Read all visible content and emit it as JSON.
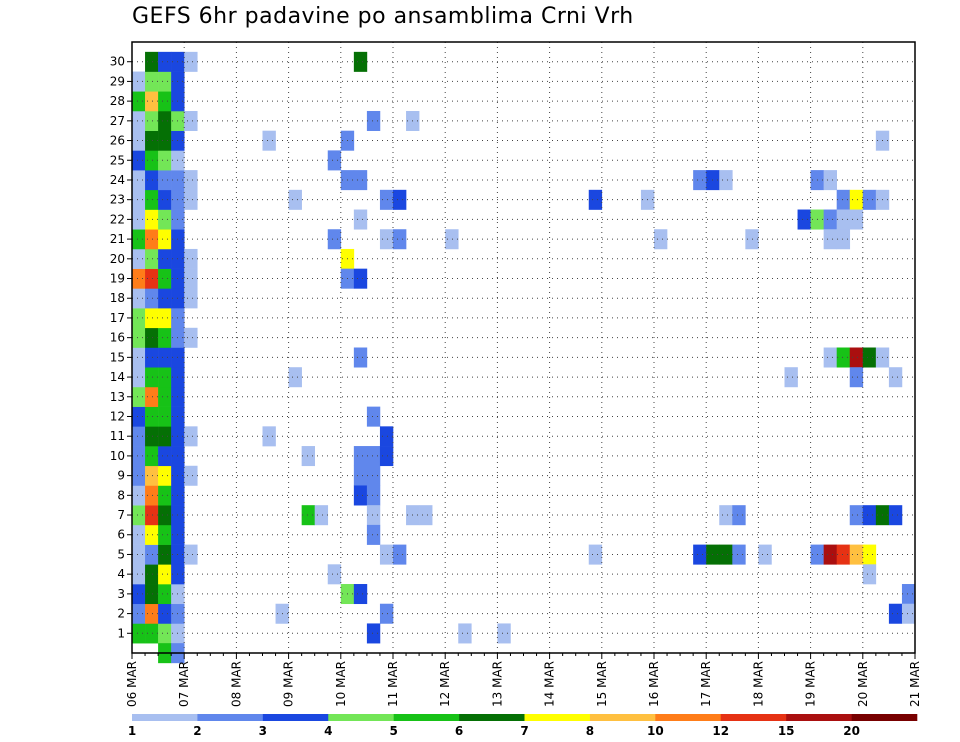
{
  "chart_data": {
    "type": "heatmap",
    "title": "GEFS 6hr padavine po ansamblima Crni Vrh",
    "x_labels": [
      "06 MAR",
      "07 MAR",
      "08 MAR",
      "09 MAR",
      "10 MAR",
      "11 MAR",
      "12 MAR",
      "13 MAR",
      "14 MAR",
      "15 MAR",
      "16 MAR",
      "17 MAR",
      "18 MAR",
      "19 MAR",
      "20 MAR",
      "21 MAR"
    ],
    "y_labels": [
      "1",
      "2",
      "3",
      "4",
      "5",
      "6",
      "7",
      "8",
      "9",
      "10",
      "11",
      "12",
      "13",
      "14",
      "15",
      "16",
      "17",
      "18",
      "19",
      "20",
      "21",
      "22",
      "23",
      "24",
      "25",
      "26",
      "27",
      "28",
      "29",
      "30"
    ],
    "x_step_hours": 6,
    "grid": true,
    "colorbar": {
      "labels": [
        "1",
        "2",
        "3",
        "4",
        "5",
        "6",
        "7",
        "8",
        "10",
        "12",
        "15",
        "20"
      ],
      "colors": [
        "#a8bff0",
        "#6087ec",
        "#1a47e0",
        "#73e657",
        "#17c217",
        "#057005",
        "#ffff00",
        "#ffc040",
        "#ff7d19",
        "#e63214",
        "#aa0f0f",
        "#780000"
      ]
    },
    "cells": [
      [
        1,
        0,
        4
      ],
      [
        1,
        1,
        4
      ],
      [
        1,
        2,
        3
      ],
      [
        1,
        3,
        0
      ],
      [
        2,
        0,
        1
      ],
      [
        2,
        1,
        8
      ],
      [
        2,
        2,
        2
      ],
      [
        2,
        3,
        1
      ],
      [
        3,
        0,
        2
      ],
      [
        3,
        1,
        5
      ],
      [
        3,
        2,
        4
      ],
      [
        3,
        3,
        0
      ],
      [
        4,
        0,
        0
      ],
      [
        4,
        1,
        5
      ],
      [
        4,
        2,
        6
      ],
      [
        4,
        3,
        2
      ],
      [
        5,
        0,
        0
      ],
      [
        5,
        1,
        1
      ],
      [
        5,
        2,
        5
      ],
      [
        5,
        3,
        2
      ],
      [
        5,
        4,
        0
      ],
      [
        6,
        0,
        0
      ],
      [
        6,
        1,
        6
      ],
      [
        6,
        2,
        4
      ],
      [
        6,
        3,
        2
      ],
      [
        7,
        0,
        3
      ],
      [
        7,
        1,
        9
      ],
      [
        7,
        2,
        5
      ],
      [
        7,
        3,
        2
      ],
      [
        8,
        0,
        0
      ],
      [
        8,
        1,
        8
      ],
      [
        8,
        2,
        4
      ],
      [
        8,
        3,
        2
      ],
      [
        9,
        0,
        1
      ],
      [
        9,
        1,
        7
      ],
      [
        9,
        2,
        6
      ],
      [
        9,
        3,
        2
      ],
      [
        9,
        4,
        0
      ],
      [
        10,
        0,
        1
      ],
      [
        10,
        1,
        4
      ],
      [
        10,
        2,
        2
      ],
      [
        10,
        3,
        2
      ],
      [
        11,
        0,
        1
      ],
      [
        11,
        1,
        5
      ],
      [
        11,
        2,
        5
      ],
      [
        11,
        3,
        2
      ],
      [
        11,
        4,
        0
      ],
      [
        12,
        0,
        2
      ],
      [
        12,
        1,
        4
      ],
      [
        12,
        2,
        4
      ],
      [
        12,
        3,
        2
      ],
      [
        13,
        0,
        3
      ],
      [
        13,
        1,
        8
      ],
      [
        13,
        2,
        4
      ],
      [
        13,
        3,
        2
      ],
      [
        14,
        0,
        0
      ],
      [
        14,
        1,
        4
      ],
      [
        14,
        2,
        4
      ],
      [
        14,
        3,
        2
      ],
      [
        15,
        0,
        0
      ],
      [
        15,
        1,
        2
      ],
      [
        15,
        2,
        2
      ],
      [
        15,
        3,
        2
      ],
      [
        16,
        0,
        3
      ],
      [
        16,
        1,
        5
      ],
      [
        16,
        2,
        4
      ],
      [
        16,
        3,
        1
      ],
      [
        16,
        4,
        0
      ],
      [
        17,
        0,
        3
      ],
      [
        17,
        1,
        6
      ],
      [
        17,
        2,
        6
      ],
      [
        17,
        3,
        1
      ],
      [
        18,
        0,
        0
      ],
      [
        18,
        1,
        1
      ],
      [
        18,
        2,
        2
      ],
      [
        18,
        3,
        2
      ],
      [
        18,
        4,
        0
      ],
      [
        19,
        0,
        8
      ],
      [
        19,
        1,
        9
      ],
      [
        19,
        2,
        4
      ],
      [
        19,
        3,
        2
      ],
      [
        19,
        4,
        0
      ],
      [
        20,
        0,
        0
      ],
      [
        20,
        1,
        3
      ],
      [
        20,
        2,
        2
      ],
      [
        20,
        3,
        2
      ],
      [
        20,
        4,
        0
      ],
      [
        21,
        0,
        4
      ],
      [
        21,
        1,
        8
      ],
      [
        21,
        2,
        6
      ],
      [
        21,
        3,
        2
      ],
      [
        22,
        0,
        0
      ],
      [
        22,
        1,
        6
      ],
      [
        22,
        2,
        3
      ],
      [
        22,
        3,
        1
      ],
      [
        23,
        0,
        0
      ],
      [
        23,
        1,
        4
      ],
      [
        23,
        2,
        2
      ],
      [
        23,
        3,
        1
      ],
      [
        23,
        4,
        0
      ],
      [
        24,
        0,
        0
      ],
      [
        24,
        1,
        2
      ],
      [
        24,
        2,
        1
      ],
      [
        24,
        3,
        1
      ],
      [
        24,
        4,
        0
      ],
      [
        25,
        0,
        2
      ],
      [
        25,
        1,
        4
      ],
      [
        25,
        2,
        3
      ],
      [
        25,
        3,
        0
      ],
      [
        26,
        0,
        0
      ],
      [
        26,
        1,
        5
      ],
      [
        26,
        2,
        5
      ],
      [
        26,
        3,
        2
      ],
      [
        27,
        0,
        0
      ],
      [
        27,
        1,
        3
      ],
      [
        27,
        2,
        5
      ],
      [
        27,
        3,
        3
      ],
      [
        27,
        4,
        0
      ],
      [
        28,
        0,
        4
      ],
      [
        28,
        1,
        7
      ],
      [
        28,
        2,
        4
      ],
      [
        28,
        3,
        2
      ],
      [
        29,
        0,
        0
      ],
      [
        29,
        1,
        3
      ],
      [
        29,
        2,
        3
      ],
      [
        29,
        3,
        2
      ],
      [
        30,
        1,
        5
      ],
      [
        30,
        2,
        2
      ],
      [
        30,
        3,
        2
      ],
      [
        30,
        4,
        0
      ],
      [
        0,
        2,
        4
      ],
      [
        0,
        3,
        1
      ],
      [
        30,
        17,
        5
      ],
      [
        27,
        18,
        1
      ],
      [
        27,
        21,
        0
      ],
      [
        26,
        10,
        0
      ],
      [
        26,
        16,
        1
      ],
      [
        26,
        57,
        0
      ],
      [
        25,
        15,
        1
      ],
      [
        24,
        16,
        1
      ],
      [
        24,
        17,
        1
      ],
      [
        24,
        43,
        1
      ],
      [
        24,
        44,
        2
      ],
      [
        24,
        45,
        0
      ],
      [
        24,
        52,
        1
      ],
      [
        24,
        53,
        0
      ],
      [
        23,
        12,
        0
      ],
      [
        23,
        19,
        1
      ],
      [
        23,
        20,
        2
      ],
      [
        23,
        35,
        2
      ],
      [
        23,
        39,
        0
      ],
      [
        23,
        54,
        1
      ],
      [
        23,
        55,
        6
      ],
      [
        23,
        56,
        1
      ],
      [
        23,
        57,
        0
      ],
      [
        22,
        17,
        0
      ],
      [
        22,
        51,
        2
      ],
      [
        22,
        52,
        3
      ],
      [
        22,
        53,
        1
      ],
      [
        22,
        54,
        0
      ],
      [
        22,
        55,
        0
      ],
      [
        21,
        15,
        1
      ],
      [
        21,
        19,
        0
      ],
      [
        21,
        20,
        1
      ],
      [
        21,
        24,
        0
      ],
      [
        21,
        40,
        0
      ],
      [
        21,
        47,
        0
      ],
      [
        21,
        53,
        0
      ],
      [
        21,
        54,
        0
      ],
      [
        20,
        16,
        6
      ],
      [
        19,
        16,
        1
      ],
      [
        19,
        17,
        2
      ],
      [
        15,
        17,
        1
      ],
      [
        15,
        53,
        0
      ],
      [
        15,
        54,
        4
      ],
      [
        15,
        55,
        10
      ],
      [
        15,
        56,
        5
      ],
      [
        15,
        57,
        0
      ],
      [
        14,
        12,
        0
      ],
      [
        14,
        50,
        0
      ],
      [
        14,
        55,
        1
      ],
      [
        14,
        58,
        0
      ],
      [
        12,
        18,
        1
      ],
      [
        11,
        10,
        0
      ],
      [
        11,
        19,
        2
      ],
      [
        10,
        13,
        0
      ],
      [
        10,
        17,
        1
      ],
      [
        10,
        18,
        1
      ],
      [
        10,
        19,
        2
      ],
      [
        9,
        17,
        1
      ],
      [
        9,
        18,
        1
      ],
      [
        8,
        17,
        2
      ],
      [
        8,
        18,
        1
      ],
      [
        7,
        13,
        4
      ],
      [
        7,
        14,
        0
      ],
      [
        7,
        18,
        0
      ],
      [
        7,
        21,
        0
      ],
      [
        7,
        22,
        0
      ],
      [
        7,
        45,
        0
      ],
      [
        7,
        46,
        1
      ],
      [
        7,
        55,
        1
      ],
      [
        7,
        56,
        2
      ],
      [
        7,
        57,
        5
      ],
      [
        7,
        58,
        2
      ],
      [
        6,
        18,
        1
      ],
      [
        5,
        19,
        0
      ],
      [
        5,
        20,
        1
      ],
      [
        5,
        35,
        0
      ],
      [
        5,
        43,
        2
      ],
      [
        5,
        44,
        5
      ],
      [
        5,
        45,
        5
      ],
      [
        5,
        46,
        1
      ],
      [
        5,
        48,
        0
      ],
      [
        5,
        52,
        1
      ],
      [
        5,
        53,
        10
      ],
      [
        5,
        54,
        9
      ],
      [
        5,
        55,
        7
      ],
      [
        5,
        56,
        6
      ],
      [
        4,
        15,
        0
      ],
      [
        4,
        56,
        0
      ],
      [
        3,
        16,
        3
      ],
      [
        3,
        17,
        2
      ],
      [
        3,
        59,
        1
      ],
      [
        2,
        11,
        0
      ],
      [
        2,
        19,
        1
      ],
      [
        2,
        58,
        2
      ],
      [
        2,
        59,
        0
      ],
      [
        1,
        18,
        2
      ],
      [
        1,
        25,
        0
      ],
      [
        1,
        28,
        0
      ]
    ]
  }
}
